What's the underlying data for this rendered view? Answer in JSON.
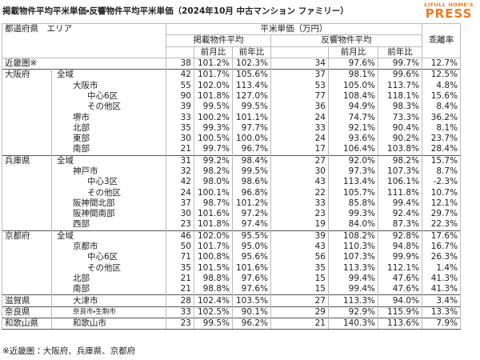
{
  "header": {
    "title": "掲載物件平均平米単価・反響物件平均平米単価（2024年10月 中古マンション ファミリー）",
    "logo_top": "LIFULL HOME'S",
    "logo_bottom": "PRESS"
  },
  "table": {
    "columns": {
      "region": "都道府県　エリア",
      "unit_price": "平米単価（万円）",
      "listed": "掲載物件平均",
      "response": "反響物件平均",
      "divergence": "乖離率",
      "listed_mom": "前月比",
      "listed_yoy": "前年比",
      "response_mom": "前月比",
      "response_yoy": "前年比"
    },
    "rows": [
      {
        "pref": "近畿圏※",
        "cells": [
          "38",
          "101.2%",
          "102.3%",
          "34",
          "97.6%",
          "99.7%",
          "12.7%"
        ]
      },
      {
        "pref": "大阪府",
        "area": "全域",
        "cells": [
          "42",
          "101.7%",
          "105.6%",
          "37",
          "98.1%",
          "99.6%",
          "12.5%"
        ]
      },
      {
        "area": "大阪市",
        "cells": [
          "55",
          "102.0%",
          "113.4%",
          "53",
          "105.0%",
          "113.7%",
          "4.8%"
        ]
      },
      {
        "area": "中心6区",
        "cells": [
          "90",
          "101.8%",
          "127.0%",
          "77",
          "108.4%",
          "118.1%",
          "15.6%"
        ]
      },
      {
        "area": "その他区",
        "cells": [
          "39",
          "99.5%",
          "99.5%",
          "36",
          "94.9%",
          "98.3%",
          "8.4%"
        ]
      },
      {
        "area": "堺市",
        "cells": [
          "33",
          "100.2%",
          "101.1%",
          "24",
          "74.7%",
          "73.3%",
          "36.2%"
        ]
      },
      {
        "area": "北部",
        "cells": [
          "35",
          "99.3%",
          "97.7%",
          "33",
          "92.1%",
          "90.4%",
          "8.1%"
        ]
      },
      {
        "area": "東部",
        "cells": [
          "30",
          "100.5%",
          "100.0%",
          "24",
          "93.6%",
          "90.2%",
          "23.7%"
        ]
      },
      {
        "area": "南部",
        "cells": [
          "21",
          "99.7%",
          "96.7%",
          "17",
          "106.4%",
          "103.8%",
          "28.4%"
        ]
      },
      {
        "pref": "兵庫県",
        "area": "全域",
        "cells": [
          "31",
          "99.2%",
          "98.4%",
          "27",
          "92.0%",
          "98.2%",
          "15.7%"
        ]
      },
      {
        "area": "神戸市",
        "cells": [
          "32",
          "98.2%",
          "99.5%",
          "30",
          "97.3%",
          "107.3%",
          "8.7%"
        ]
      },
      {
        "area": "中心3区",
        "cells": [
          "42",
          "98.0%",
          "98.6%",
          "43",
          "113.4%",
          "106.1%",
          "-2.3%"
        ]
      },
      {
        "area": "その他区",
        "cells": [
          "24",
          "100.1%",
          "96.8%",
          "22",
          "105.7%",
          "111.8%",
          "10.7%"
        ]
      },
      {
        "area": "阪神間北部",
        "cells": [
          "37",
          "98.7%",
          "101.2%",
          "33",
          "85.8%",
          "99.4%",
          "12.1%"
        ]
      },
      {
        "area": "阪神間南部",
        "cells": [
          "30",
          "101.6%",
          "97.2%",
          "23",
          "99.3%",
          "92.4%",
          "29.7%"
        ]
      },
      {
        "area": "西部",
        "cells": [
          "23",
          "101.8%",
          "97.4%",
          "19",
          "84.0%",
          "87.3%",
          "22.3%"
        ]
      },
      {
        "pref": "京都府",
        "area": "全域",
        "cells": [
          "46",
          "102.0%",
          "95.5%",
          "39",
          "108.2%",
          "92.8%",
          "17.6%"
        ]
      },
      {
        "area": "京都市",
        "cells": [
          "50",
          "101.7%",
          "95.0%",
          "43",
          "110.3%",
          "94.8%",
          "16.7%"
        ]
      },
      {
        "area": "中心6区",
        "cells": [
          "71",
          "100.8%",
          "95.6%",
          "56",
          "107.3%",
          "99.9%",
          "26.3%"
        ]
      },
      {
        "area": "その他区",
        "cells": [
          "35",
          "101.5%",
          "101.6%",
          "35",
          "113.3%",
          "112.1%",
          "1.4%"
        ]
      },
      {
        "area": "北部",
        "cells": [
          "21",
          "98.8%",
          "97.6%",
          "15",
          "99.4%",
          "47.6%",
          "41.3%"
        ]
      },
      {
        "area": "南部",
        "cells": [
          "21",
          "98.8%",
          "97.6%",
          "15",
          "99.4%",
          "47.6%",
          "41.3%"
        ]
      },
      {
        "pref": "滋賀県",
        "area": "大津市",
        "cells": [
          "28",
          "102.4%",
          "103.5%",
          "27",
          "113.3%",
          "94.0%",
          "3.4%"
        ]
      },
      {
        "pref": "奈良県",
        "area": "奈良市・生駒市",
        "cells": [
          "33",
          "102.5%",
          "90.1%",
          "29",
          "92.9%",
          "115.9%",
          "13.3%"
        ]
      },
      {
        "pref": "和歌山県",
        "area": "和歌山市",
        "cells": [
          "23",
          "99.5%",
          "96.2%",
          "21",
          "140.3%",
          "113.6%",
          "7.9%"
        ]
      }
    ]
  },
  "footnote": "※近畿圏：大阪府、兵庫県、京都府"
}
